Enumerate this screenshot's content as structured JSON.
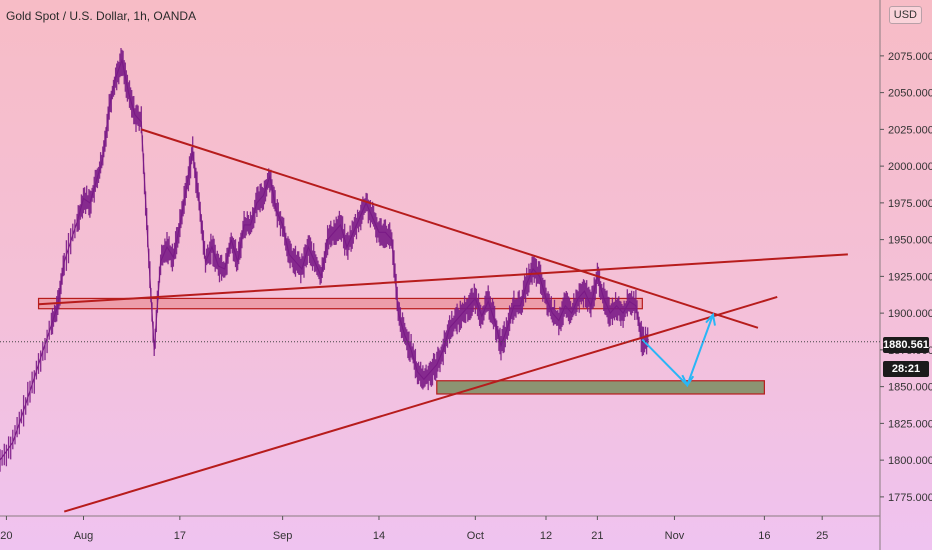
{
  "header": {
    "title": "Gold Spot / U.S. Dollar, 1h, OANDA",
    "currency_badge": "USD"
  },
  "price_tag": {
    "value": "1880.561",
    "countdown": "28:21"
  },
  "chart_data": {
    "type": "line",
    "title": "Gold Spot / U.S. Dollar, 1h, OANDA",
    "ylim": [
      1762,
      2113
    ],
    "y_ticks": [
      "1775.000",
      "1800.000",
      "1825.000",
      "1850.000",
      "1875.000",
      "1900.000",
      "1925.000",
      "1950.000",
      "1975.000",
      "2000.000",
      "2025.000",
      "2050.000",
      "2075.000"
    ],
    "y_tick_values": [
      1775,
      1800,
      1825,
      1850,
      1875,
      1900,
      1925,
      1950,
      1975,
      2000,
      2025,
      2050,
      2075
    ],
    "x_ticks": [
      "20",
      "Aug",
      "17",
      "Sep",
      "14",
      "Oct",
      "12",
      "21",
      "Nov",
      "16",
      "25"
    ],
    "x_tick_days": [
      -11,
      1,
      16,
      32,
      47,
      62,
      73,
      81,
      93,
      107,
      116
    ],
    "xlim_days": [
      -12,
      125
    ],
    "x_unit": "days from 2020-08-01",
    "last_price": 1880.561,
    "series": [
      {
        "values": [
          [
            -12,
            1800
          ],
          [
            -10,
            1812
          ],
          [
            -8,
            1838
          ],
          [
            -6,
            1865
          ],
          [
            -4,
            1892
          ],
          [
            -3,
            1905
          ],
          [
            -2,
            1935
          ],
          [
            0,
            1962
          ],
          [
            1,
            1978
          ],
          [
            2,
            1975
          ],
          [
            3,
            1990
          ],
          [
            4,
            2005
          ],
          [
            5,
            2040
          ],
          [
            6,
            2060
          ],
          [
            7,
            2072
          ],
          [
            8,
            2050
          ],
          [
            9,
            2035
          ],
          [
            10,
            2030
          ],
          [
            11,
            1950
          ],
          [
            12,
            1875
          ],
          [
            13,
            1935
          ],
          [
            14,
            1945
          ],
          [
            15,
            1938
          ],
          [
            16,
            1960
          ],
          [
            17,
            1985
          ],
          [
            18,
            2010
          ],
          [
            19,
            1975
          ],
          [
            20,
            1935
          ],
          [
            21,
            1945
          ],
          [
            22,
            1932
          ],
          [
            23,
            1930
          ],
          [
            24,
            1950
          ],
          [
            25,
            1935
          ],
          [
            26,
            1960
          ],
          [
            27,
            1960
          ],
          [
            28,
            1975
          ],
          [
            29,
            1980
          ],
          [
            30,
            1993
          ],
          [
            31,
            1970
          ],
          [
            32,
            1960
          ],
          [
            33,
            1940
          ],
          [
            34,
            1935
          ],
          [
            35,
            1930
          ],
          [
            36,
            1945
          ],
          [
            37,
            1935
          ],
          [
            38,
            1925
          ],
          [
            39,
            1950
          ],
          [
            40,
            1955
          ],
          [
            41,
            1960
          ],
          [
            42,
            1945
          ],
          [
            43,
            1955
          ],
          [
            44,
            1965
          ],
          [
            45,
            1975
          ],
          [
            46,
            1965
          ],
          [
            47,
            1955
          ],
          [
            48,
            1955
          ],
          [
            49,
            1950
          ],
          [
            50,
            1900
          ],
          [
            51,
            1885
          ],
          [
            52,
            1875
          ],
          [
            53,
            1860
          ],
          [
            54,
            1855
          ],
          [
            55,
            1860
          ],
          [
            56,
            1865
          ],
          [
            57,
            1875
          ],
          [
            58,
            1890
          ],
          [
            59,
            1895
          ],
          [
            60,
            1900
          ],
          [
            61,
            1905
          ],
          [
            62,
            1910
          ],
          [
            63,
            1898
          ],
          [
            64,
            1908
          ],
          [
            65,
            1895
          ],
          [
            66,
            1878
          ],
          [
            67,
            1890
          ],
          [
            68,
            1905
          ],
          [
            69,
            1905
          ],
          [
            70,
            1920
          ],
          [
            71,
            1930
          ],
          [
            72,
            1925
          ],
          [
            73,
            1910
          ],
          [
            74,
            1900
          ],
          [
            75,
            1895
          ],
          [
            76,
            1905
          ],
          [
            77,
            1900
          ],
          [
            78,
            1910
          ],
          [
            79,
            1915
          ],
          [
            80,
            1905
          ],
          [
            81,
            1925
          ],
          [
            82,
            1910
          ],
          [
            83,
            1900
          ],
          [
            84,
            1905
          ],
          [
            85,
            1900
          ],
          [
            86,
            1908
          ],
          [
            87,
            1905
          ],
          [
            88,
            1880
          ],
          [
            89,
            1882
          ]
        ]
      }
    ],
    "annotations": [
      {
        "kind": "trendline",
        "from": [
          10,
          2025
        ],
        "to": [
          106,
          1890
        ]
      },
      {
        "kind": "trendline",
        "from": [
          -6,
          1906
        ],
        "to": [
          120,
          1940
        ]
      },
      {
        "kind": "trendline",
        "from": [
          -2,
          1765
        ],
        "to": [
          109,
          1911
        ]
      },
      {
        "kind": "zone",
        "days": [
          -6,
          88
        ],
        "price": [
          1903,
          1910
        ]
      },
      {
        "kind": "zone",
        "days": [
          56,
          107
        ],
        "price": [
          1845,
          1854
        ]
      },
      {
        "kind": "projection",
        "points": [
          [
            88,
            1882
          ],
          [
            95,
            1851
          ],
          [
            99,
            1899
          ]
        ]
      }
    ],
    "colors": {
      "candle": "#7a1a86",
      "trendline": "#b71c1c",
      "zone_red": "#e57373",
      "zone_green": "#7a8c5e",
      "projection": "#29b6f6",
      "price_line": "#444444"
    }
  }
}
